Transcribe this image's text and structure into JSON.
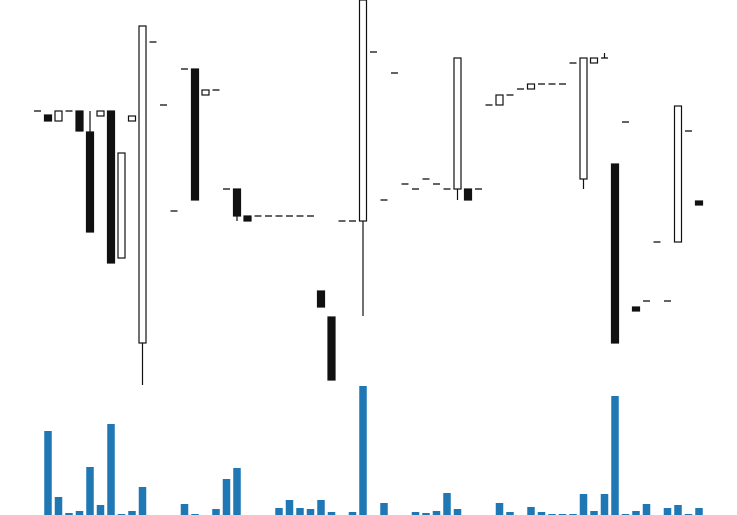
{
  "chart_data": {
    "type": "candlestick",
    "open": [
      289,
      285,
      279,
      289,
      289,
      268,
      284,
      289,
      142,
      279,
      57,
      358,
      295,
      189,
      331,
      331,
      305,
      310,
      211,
      211,
      184,
      184,
      184,
      184,
      184,
      184,
      184,
      109,
      83,
      179,
      179,
      179,
      348,
      200,
      327,
      216,
      211,
      221,
      216,
      211,
      211,
      211,
      211,
      295,
      295,
      305,
      311,
      311,
      316,
      316,
      316,
      337,
      221,
      337,
      342,
      236,
      278,
      93,
      99,
      158,
      99,
      158,
      269,
      199
    ],
    "high": [
      289,
      285,
      289,
      289,
      289,
      289,
      289,
      289,
      247,
      284,
      374,
      358,
      295,
      189,
      331,
      331,
      310,
      310,
      211,
      211,
      184,
      184,
      184,
      184,
      184,
      184,
      184,
      109,
      83,
      179,
      179,
      400,
      348,
      200,
      327,
      216,
      211,
      221,
      216,
      211,
      342,
      211,
      211,
      295,
      305,
      305,
      311,
      316,
      316,
      316,
      316,
      337,
      342,
      342,
      347,
      236,
      278,
      93,
      99,
      158,
      99,
      294,
      269,
      199
    ],
    "low": [
      289,
      279,
      279,
      289,
      269,
      168,
      284,
      137,
      142,
      279,
      15,
      358,
      295,
      189,
      331,
      200,
      305,
      310,
      211,
      179,
      179,
      184,
      184,
      184,
      184,
      184,
      184,
      93,
      20,
      179,
      179,
      84,
      348,
      200,
      327,
      216,
      211,
      221,
      216,
      211,
      200,
      200,
      211,
      295,
      295,
      305,
      311,
      311,
      316,
      316,
      316,
      337,
      211,
      337,
      342,
      57,
      278,
      89,
      99,
      158,
      99,
      158,
      269,
      195
    ],
    "close": [
      289,
      279,
      289,
      289,
      269,
      168,
      289,
      137,
      247,
      284,
      374,
      358,
      295,
      189,
      331,
      200,
      310,
      310,
      211,
      184,
      179,
      184,
      184,
      184,
      184,
      184,
      184,
      93,
      20,
      179,
      179,
      400,
      348,
      200,
      327,
      216,
      211,
      221,
      216,
      211,
      342,
      200,
      211,
      295,
      305,
      305,
      311,
      316,
      316,
      316,
      316,
      337,
      342,
      342,
      342,
      57,
      278,
      89,
      99,
      158,
      99,
      294,
      269,
      195
    ],
    "volume": [
      0,
      84,
      18,
      2,
      4,
      48,
      10,
      91,
      1,
      4,
      28,
      0,
      0,
      0,
      11,
      1,
      0,
      6,
      36,
      47,
      0,
      0,
      0,
      7,
      15,
      7,
      6,
      15,
      3,
      0,
      3,
      129,
      0,
      12,
      0,
      0,
      3,
      2,
      4,
      22,
      6,
      0,
      0,
      0,
      12,
      3,
      0,
      8,
      3,
      1,
      1,
      1,
      21,
      4,
      21,
      119,
      1,
      4,
      11,
      0,
      7,
      10,
      1,
      7
    ],
    "up_color": "#ffffff",
    "down_color": "#111111",
    "edge_color": "#111111",
    "volume_color": "#1f77b4",
    "ylim": [
      0,
      400
    ],
    "volume_ylim": [
      0,
      130
    ]
  }
}
